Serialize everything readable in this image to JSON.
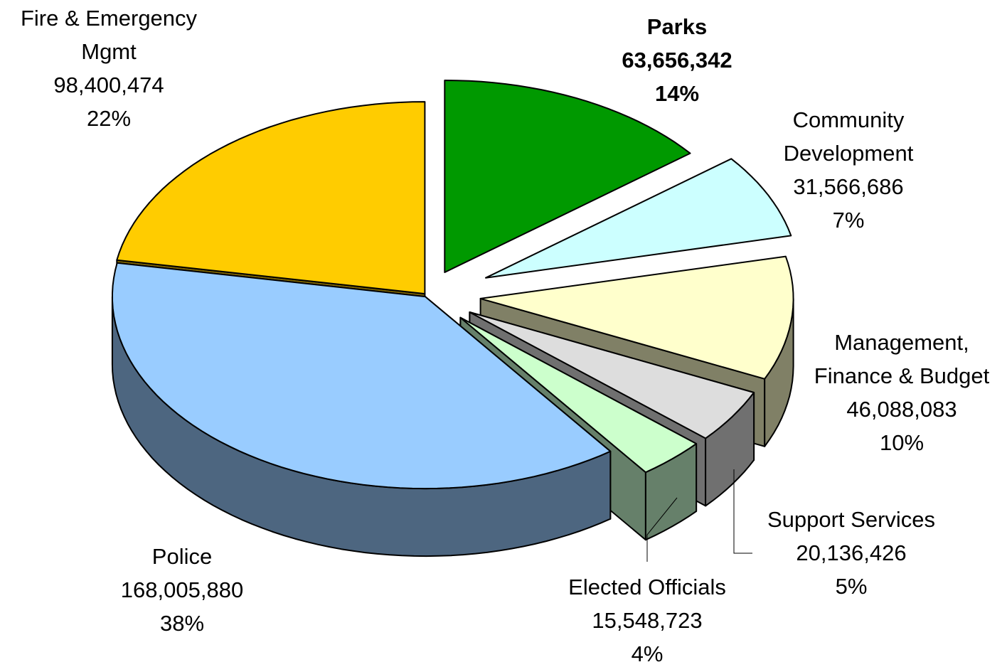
{
  "chart_data": {
    "type": "pie",
    "style": "3d-exploded",
    "slices": [
      {
        "key": "parks",
        "label": "Parks",
        "value": 63656342,
        "value_text": "63,656,342",
        "percent": "14%",
        "color": "#009900",
        "side_color": "#005200",
        "bold": true
      },
      {
        "key": "community",
        "label": "Community Development",
        "label_lines": [
          "Community",
          "Development"
        ],
        "value": 31566686,
        "value_text": "31,566,686",
        "percent": "7%",
        "color": "#ccffff",
        "side_color": "#5f8080"
      },
      {
        "key": "management",
        "label": "Management, Finance & Budget",
        "label_lines": [
          "Management,",
          "Finance & Budget"
        ],
        "value": 46088083,
        "value_text": "46,088,083",
        "percent": "10%",
        "color": "#ffffcc",
        "side_color": "#808066"
      },
      {
        "key": "support",
        "label": "Support Services",
        "value": 20136426,
        "value_text": "20,136,426",
        "percent": "5%",
        "color": "#dddddd",
        "side_color": "#707070"
      },
      {
        "key": "elected",
        "label": "Elected Officials",
        "value": 15548723,
        "value_text": "15,548,723",
        "percent": "4%",
        "color": "#ccffcc",
        "side_color": "#66806a"
      },
      {
        "key": "police",
        "label": "Police",
        "value": 168005880,
        "value_text": "168,005,880",
        "percent": "38%",
        "color": "#99ccff",
        "side_color": "#4d6680"
      },
      {
        "key": "fire",
        "label": "Fire & Emergency Mgmt",
        "label_lines": [
          "Fire & Emergency",
          "Mgmt"
        ],
        "value": 98400474,
        "value_text": "98,400,474",
        "percent": "22%",
        "color": "#ffcc00",
        "side_color": "#806600"
      }
    ]
  }
}
